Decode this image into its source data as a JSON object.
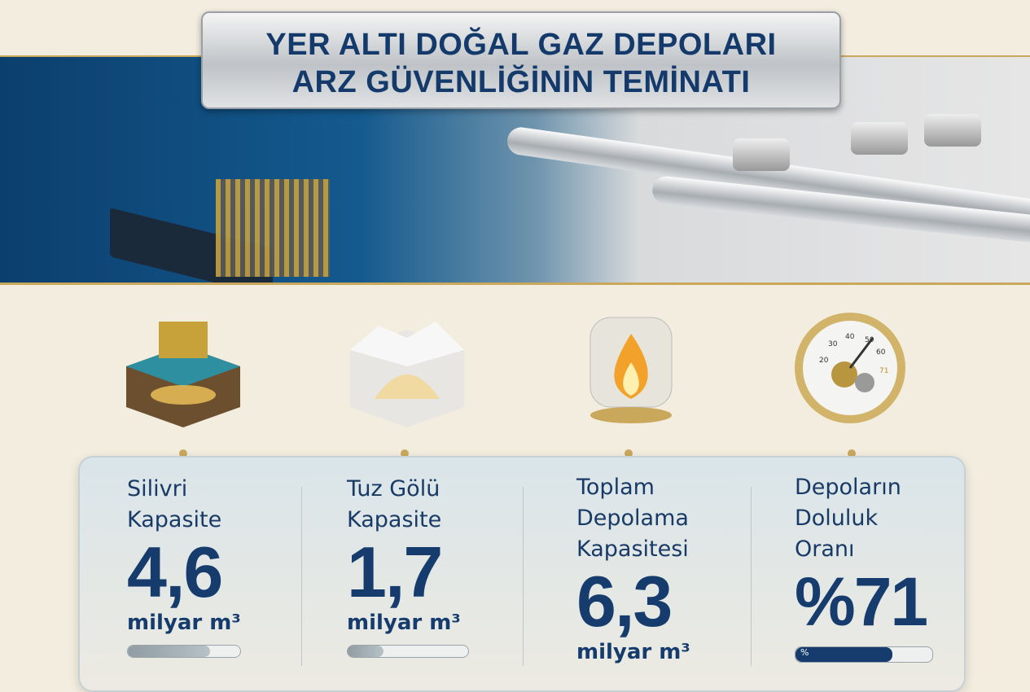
{
  "title": {
    "line1": "YER ALTI DOĞAL GAZ DEPOLARI",
    "line2": "ARZ GÜVENLİĞİNİN TEMİNATI"
  },
  "icons": [
    "offshore-rig-reservoir-icon",
    "salt-cavern-icon",
    "flame-jar-icon",
    "pressure-gauge-icon"
  ],
  "gauge_ticks": [
    "20",
    "30",
    "40",
    "50",
    "60",
    "71"
  ],
  "stats": [
    {
      "label": [
        "Silivri",
        "Kapasite"
      ],
      "value": "4,6",
      "unit": "milyar m³",
      "progress": 0.73
    },
    {
      "label": [
        "Tuz Gölü",
        "Kapasite"
      ],
      "value": "1,7",
      "unit": "milyar m³",
      "progress": 0.3
    },
    {
      "label": [
        "Toplam",
        "Depolama",
        "Kapasitesi"
      ],
      "value": "6,3",
      "unit": "milyar m³"
    },
    {
      "label": [
        "Depoların",
        "Doluluk",
        "Oranı"
      ],
      "value": "%71",
      "progress": 0.71,
      "bar_text": "%"
    }
  ],
  "colors": {
    "navy": "#163c6e",
    "gold": "#c9a85c",
    "background": "#f3ede0"
  }
}
